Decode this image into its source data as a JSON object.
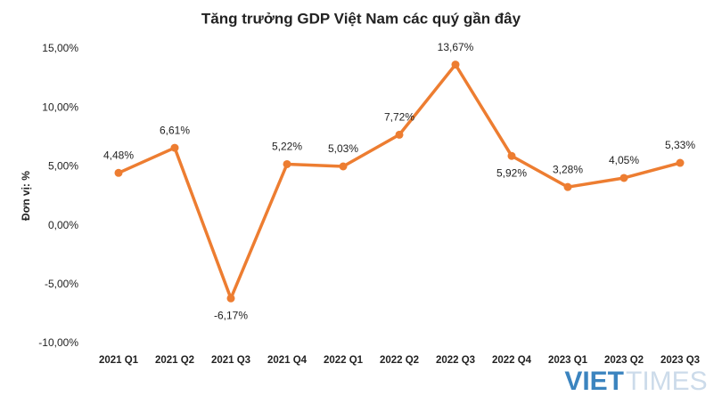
{
  "chart_data": {
    "type": "line",
    "title": "Tăng trưởng GDP Việt Nam các quý gần đây",
    "y_label": "Đơn vị: %",
    "categories": [
      "2021 Q1",
      "2021 Q2",
      "2021 Q3",
      "2021 Q4",
      "2022 Q1",
      "2022 Q2",
      "2022 Q3",
      "2022 Q4",
      "2023 Q1",
      "2023 Q2",
      "2023 Q3"
    ],
    "series": [
      {
        "name": "GDP",
        "color": "#ed7d31",
        "values": [
          4.48,
          6.61,
          -6.17,
          5.22,
          5.03,
          7.72,
          13.67,
          5.92,
          3.28,
          4.05,
          5.33
        ],
        "value_labels": [
          "4,48%",
          "6,61%",
          "-6,17%",
          "5,22%",
          "5,03%",
          "7,72%",
          "13,67%",
          "5,92%",
          "3,28%",
          "4,05%",
          "5,33%"
        ]
      }
    ],
    "ylim": [
      -10,
      15
    ],
    "yticks": [
      {
        "value": -10,
        "label": "-10,00%"
      },
      {
        "value": -5,
        "label": "-5,00%"
      },
      {
        "value": 0,
        "label": "0,00%"
      },
      {
        "value": 5,
        "label": "5,00%"
      },
      {
        "value": 10,
        "label": "10,00%"
      },
      {
        "value": 15,
        "label": "15,00%"
      }
    ],
    "grid": false,
    "watermark": [
      "VIET",
      "TIMES"
    ]
  }
}
